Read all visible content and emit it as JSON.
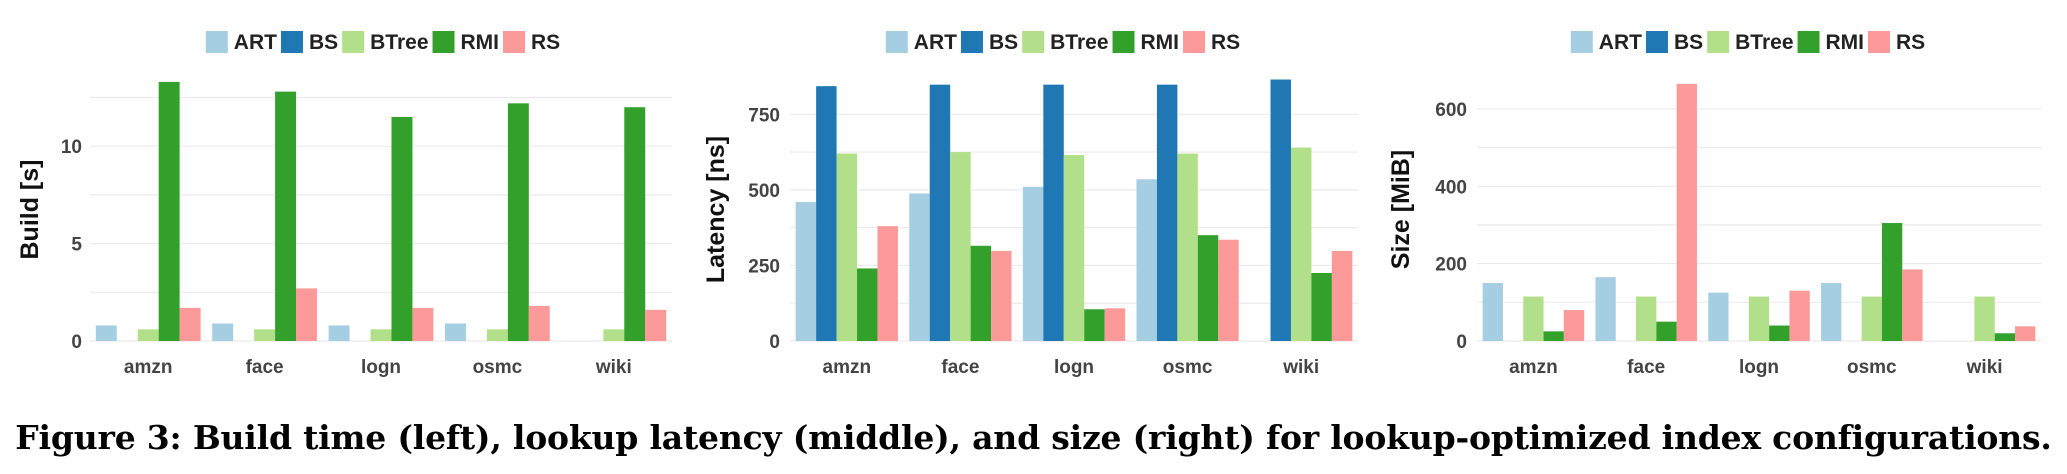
{
  "caption": "Figure 3: Build time (left), lookup latency (middle), and size (right) for lookup-optimized index configurations.",
  "colors": {
    "ART": "#a6cee3",
    "BS": "#1f78b4",
    "BTree": "#b2df8a",
    "RMI": "#33a02c",
    "RS": "#fb9a99"
  },
  "chart_data": [
    {
      "type": "bar",
      "ylabel": "Build [s]",
      "categories": [
        "amzn",
        "face",
        "logn",
        "osmc",
        "wiki"
      ],
      "ylim": [
        0,
        13.5
      ],
      "yticks": [
        0,
        5,
        10
      ],
      "legend": [
        "ART",
        "BS",
        "BTree",
        "RMI",
        "RS"
      ],
      "legend_position": "top",
      "grid": true,
      "series": [
        {
          "name": "ART",
          "values": [
            0.8,
            0.9,
            0.8,
            0.9,
            null
          ]
        },
        {
          "name": "BS",
          "values": [
            null,
            null,
            null,
            null,
            null
          ]
        },
        {
          "name": "BTree",
          "values": [
            0.6,
            0.6,
            0.6,
            0.6,
            0.6
          ]
        },
        {
          "name": "RMI",
          "values": [
            13.3,
            12.8,
            11.5,
            12.2,
            12.0
          ]
        },
        {
          "name": "RS",
          "values": [
            1.7,
            2.7,
            1.7,
            1.8,
            1.6
          ]
        }
      ]
    },
    {
      "type": "bar",
      "ylabel": "Latency [ns]",
      "categories": [
        "amzn",
        "face",
        "logn",
        "osmc",
        "wiki"
      ],
      "ylim": [
        0,
        870
      ],
      "yticks": [
        0,
        250,
        500,
        750
      ],
      "legend": [
        "ART",
        "BS",
        "BTree",
        "RMI",
        "RS"
      ],
      "legend_position": "top",
      "grid": true,
      "series": [
        {
          "name": "ART",
          "values": [
            460,
            488,
            510,
            535,
            null
          ]
        },
        {
          "name": "BS",
          "values": [
            843,
            848,
            848,
            848,
            865
          ]
        },
        {
          "name": "BTree",
          "values": [
            620,
            625,
            615,
            620,
            640
          ]
        },
        {
          "name": "RMI",
          "values": [
            240,
            315,
            105,
            350,
            225
          ]
        },
        {
          "name": "RS",
          "values": [
            380,
            298,
            108,
            335,
            298
          ]
        }
      ]
    },
    {
      "type": "bar",
      "ylabel": "Size [MiB]",
      "categories": [
        "amzn",
        "face",
        "logn",
        "osmc",
        "wiki"
      ],
      "ylim": [
        0,
        680
      ],
      "yticks": [
        0,
        200,
        400,
        600
      ],
      "legend": [
        "ART",
        "BS",
        "BTree",
        "RMI",
        "RS"
      ],
      "legend_position": "top",
      "grid": true,
      "series": [
        {
          "name": "ART",
          "values": [
            150,
            165,
            125,
            150,
            null
          ]
        },
        {
          "name": "BS",
          "values": [
            null,
            null,
            null,
            null,
            null
          ]
        },
        {
          "name": "BTree",
          "values": [
            115,
            115,
            115,
            115,
            115
          ]
        },
        {
          "name": "RMI",
          "values": [
            25,
            50,
            40,
            305,
            20
          ]
        },
        {
          "name": "RS",
          "values": [
            80,
            665,
            130,
            185,
            38
          ]
        }
      ]
    }
  ]
}
